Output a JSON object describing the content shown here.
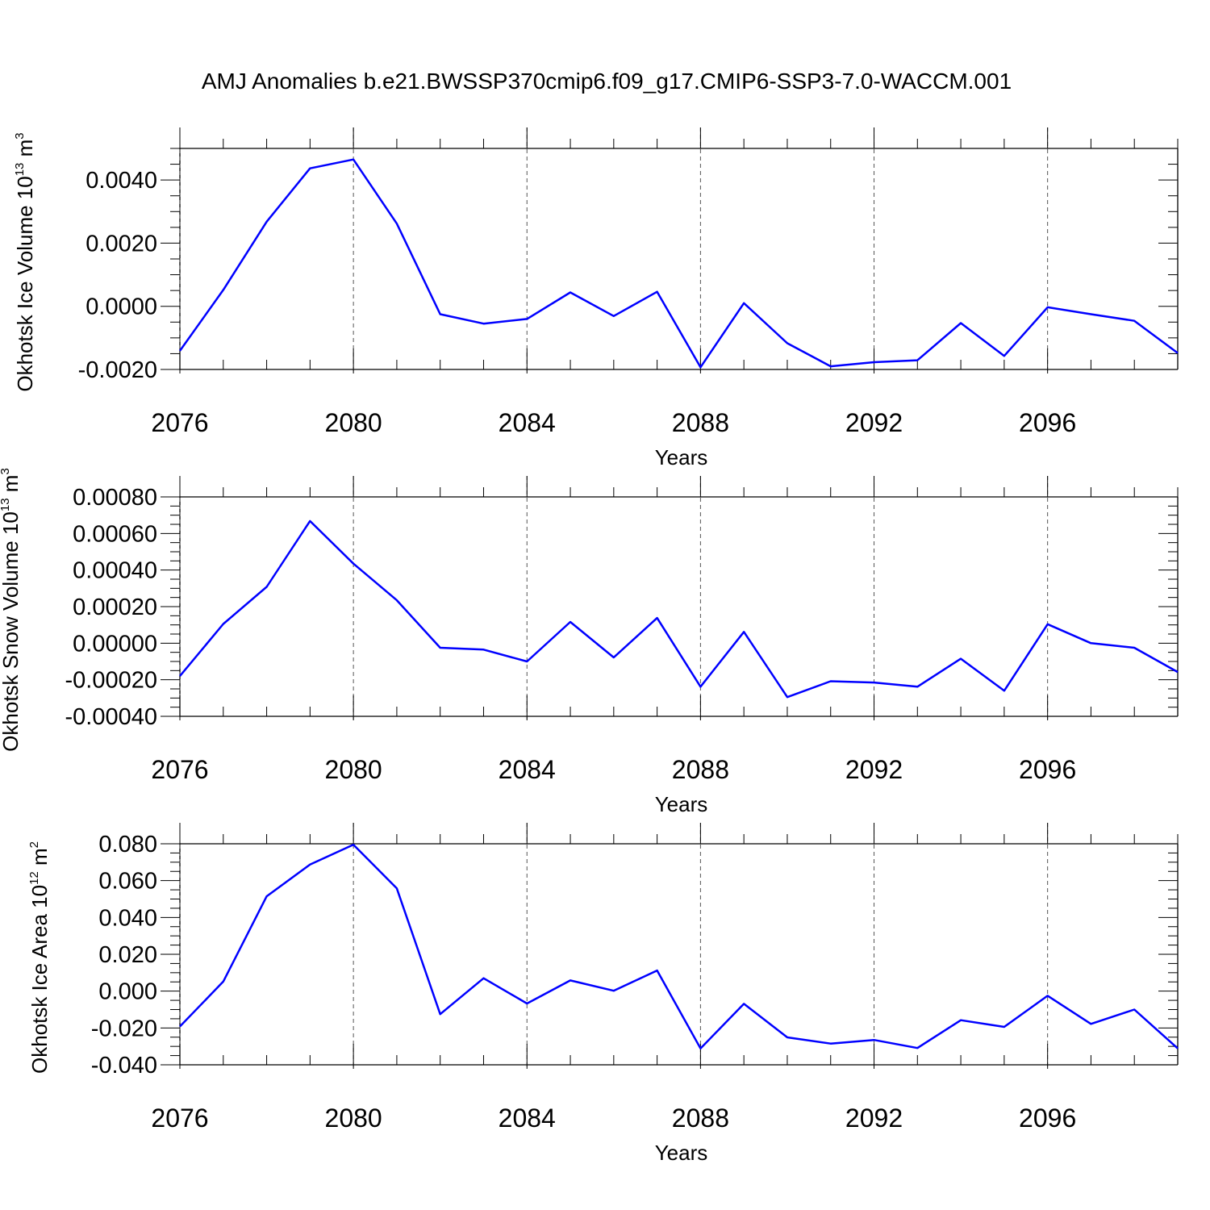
{
  "figure_title": "AMJ Anomalies b.e21.BWSSP370cmip6.f09_g17.CMIP6-SSP3-7.0-WACCM.001",
  "colors": {
    "series": "#0000ff",
    "axis": "#000000",
    "grid": "#555555",
    "background": "#ffffff"
  },
  "chart_data": [
    {
      "type": "line",
      "ylabel": "Okhotsk Ice Volume 10",
      "ylabel_exp": "13",
      "ylabel_unit": "m",
      "ylabel_unit_exp": "3",
      "xlabel": "Years",
      "xlim": [
        2076,
        2099
      ],
      "ylim": [
        -0.002,
        0.005
      ],
      "yticks": [
        -0.002,
        0.0,
        0.002,
        0.004
      ],
      "ytick_labels": [
        "-0.0020",
        "0.0000",
        "0.0020",
        "0.0040"
      ],
      "yminor": 0.0005,
      "xticks": [
        2076,
        2080,
        2084,
        2088,
        2092,
        2096
      ],
      "xtick_labels": [
        "2076",
        "2080",
        "2084",
        "2088",
        "2092",
        "2096"
      ],
      "grid": "vertical dashed at major x ticks",
      "x": [
        2076,
        2077,
        2078,
        2079,
        2080,
        2081,
        2082,
        2083,
        2084,
        2085,
        2086,
        2087,
        2088,
        2089,
        2090,
        2091,
        2092,
        2093,
        2094,
        2095,
        2096,
        2097,
        2098,
        2099
      ],
      "series": [
        {
          "name": "Okhotsk Ice Volume",
          "values": [
            -0.00141,
            0.00052,
            0.00268,
            0.00437,
            0.00465,
            0.00262,
            -0.00025,
            -0.00055,
            -0.0004,
            0.00044,
            -0.00031,
            0.00046,
            -0.00193,
            0.0001,
            -0.00117,
            -0.0019,
            -0.00177,
            -0.00171,
            -0.00053,
            -0.00157,
            -3e-05,
            -0.00025,
            -0.00046,
            -0.00148
          ]
        }
      ]
    },
    {
      "type": "line",
      "ylabel": "Okhotsk Snow Volume 10",
      "ylabel_exp": "13",
      "ylabel_unit": "m",
      "ylabel_unit_exp": "3",
      "xlabel": "Years",
      "xlim": [
        2076,
        2099
      ],
      "ylim": [
        -0.0004,
        0.0008
      ],
      "yticks": [
        -0.0004,
        -0.0002,
        0.0,
        0.0002,
        0.0004,
        0.0006,
        0.0008
      ],
      "ytick_labels": [
        "-0.00040",
        "-0.00020",
        "0.00000",
        "0.00020",
        "0.00040",
        "0.00060",
        "0.00080"
      ],
      "yminor": 5e-05,
      "xticks": [
        2076,
        2080,
        2084,
        2088,
        2092,
        2096
      ],
      "xtick_labels": [
        "2076",
        "2080",
        "2084",
        "2088",
        "2092",
        "2096"
      ],
      "grid": "vertical dashed at major x ticks",
      "x": [
        2076,
        2077,
        2078,
        2079,
        2080,
        2081,
        2082,
        2083,
        2084,
        2085,
        2086,
        2087,
        2088,
        2089,
        2090,
        2091,
        2092,
        2093,
        2094,
        2095,
        2096,
        2097,
        2098,
        2099
      ],
      "series": [
        {
          "name": "Okhotsk Snow Volume",
          "values": [
            -0.00018,
            0.000105,
            0.000308,
            0.000668,
            0.000435,
            0.000235,
            -2.5e-05,
            -3.5e-05,
            -0.0001,
            0.000116,
            -7.8e-05,
            0.000138,
            -0.000238,
            6.2e-05,
            -0.000295,
            -0.000208,
            -0.000215,
            -0.000238,
            -8.5e-05,
            -0.00026,
            0.000104,
            0.0,
            -2.5e-05,
            -0.000158
          ]
        }
      ]
    },
    {
      "type": "line",
      "ylabel": "Okhotsk Ice Area 10",
      "ylabel_exp": "12",
      "ylabel_unit": "m",
      "ylabel_unit_exp": "2",
      "xlabel": "Years",
      "xlim": [
        2076,
        2099
      ],
      "ylim": [
        -0.04,
        0.08
      ],
      "yticks": [
        -0.04,
        -0.02,
        0.0,
        0.02,
        0.04,
        0.06,
        0.08
      ],
      "ytick_labels": [
        "-0.040",
        "-0.020",
        "0.000",
        "0.020",
        "0.040",
        "0.060",
        "0.080"
      ],
      "yminor": 0.005,
      "xticks": [
        2076,
        2080,
        2084,
        2088,
        2092,
        2096
      ],
      "xtick_labels": [
        "2076",
        "2080",
        "2084",
        "2088",
        "2092",
        "2096"
      ],
      "grid": "vertical dashed at major x ticks",
      "x": [
        2076,
        2077,
        2078,
        2079,
        2080,
        2081,
        2082,
        2083,
        2084,
        2085,
        2086,
        2087,
        2088,
        2089,
        2090,
        2091,
        2092,
        2093,
        2094,
        2095,
        2096,
        2097,
        2098,
        2099
      ],
      "series": [
        {
          "name": "Okhotsk Ice Area",
          "values": [
            -0.0192,
            0.0052,
            0.0515,
            0.0687,
            0.0795,
            0.0558,
            -0.0125,
            0.007,
            -0.0067,
            0.0058,
            0.0002,
            0.0112,
            -0.0311,
            -0.0069,
            -0.0251,
            -0.0285,
            -0.0265,
            -0.0309,
            -0.0158,
            -0.0194,
            -0.0025,
            -0.0178,
            -0.01,
            -0.0311
          ]
        }
      ]
    }
  ]
}
